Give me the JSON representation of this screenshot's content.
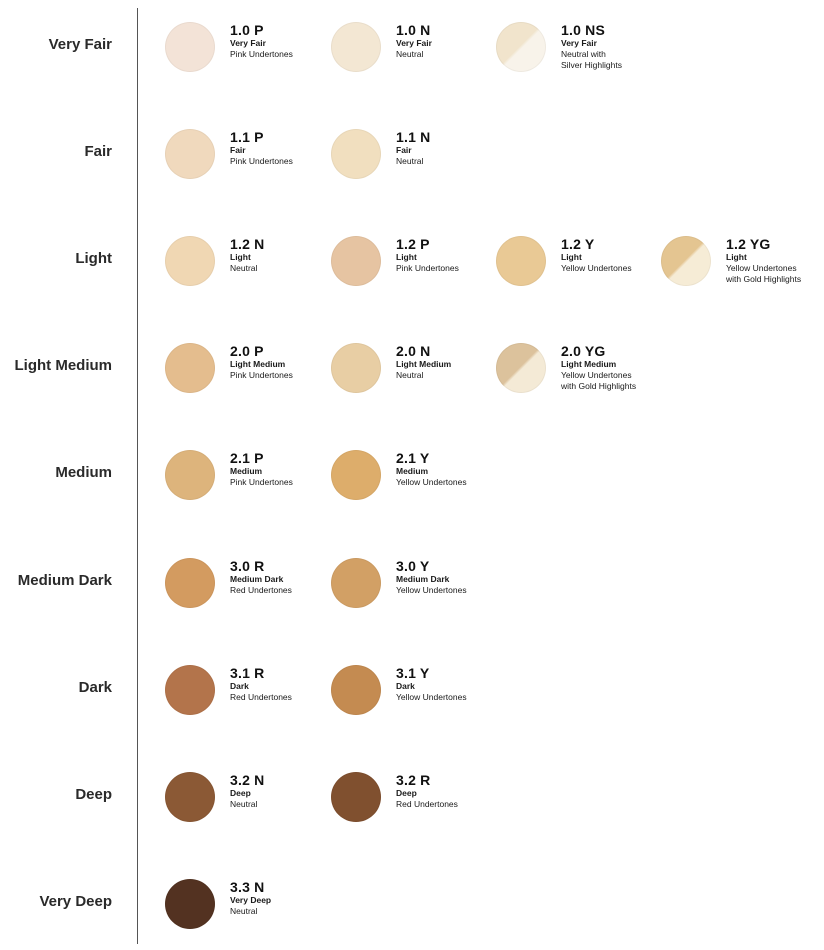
{
  "rows": [
    {
      "label": "Very Fair",
      "shades": [
        {
          "code": "1.0 P",
          "depth": "Very Fair",
          "tone": [
            "Pink Undertones"
          ],
          "color": "#f3e3d7"
        },
        {
          "code": "1.0 N",
          "depth": "Very Fair",
          "tone": [
            "Neutral"
          ],
          "color": "#f3e7d3"
        },
        {
          "code": "1.0 NS",
          "depth": "Very Fair",
          "tone": [
            "Neutral with",
            "Silver Highlights"
          ],
          "color": "#f1e4cc",
          "color2": "#f8f3ea"
        }
      ]
    },
    {
      "label": "Fair",
      "shades": [
        {
          "code": "1.1 P",
          "depth": "Fair",
          "tone": [
            "Pink Undertones"
          ],
          "color": "#f0d9bd"
        },
        {
          "code": "1.1 N",
          "depth": "Fair",
          "tone": [
            "Neutral"
          ],
          "color": "#f1dfbf"
        }
      ]
    },
    {
      "label": "Light",
      "shades": [
        {
          "code": "1.2 N",
          "depth": "Light",
          "tone": [
            "Neutral"
          ],
          "color": "#f0d7b3"
        },
        {
          "code": "1.2 P",
          "depth": "Light",
          "tone": [
            "Pink Undertones"
          ],
          "color": "#e6c4a2"
        },
        {
          "code": "1.2 Y",
          "depth": "Light",
          "tone": [
            "Yellow Undertones"
          ],
          "color": "#e9c995"
        },
        {
          "code": "1.2 YG",
          "depth": "Light",
          "tone": [
            "Yellow Undertones",
            "with Gold Highlights"
          ],
          "color": "#e4c591",
          "color2": "#f6ecd6"
        }
      ]
    },
    {
      "label": "Light Medium",
      "shades": [
        {
          "code": "2.0 P",
          "depth": "Light Medium",
          "tone": [
            "Pink Undertones"
          ],
          "color": "#e4bd8e"
        },
        {
          "code": "2.0 N",
          "depth": "Light Medium",
          "tone": [
            "Neutral"
          ],
          "color": "#e8cea4"
        },
        {
          "code": "2.0 YG",
          "depth": "Light Medium",
          "tone": [
            "Yellow Undertones",
            "with Gold Highlights"
          ],
          "color": "#dcc29c",
          "color2": "#f4ead6"
        }
      ]
    },
    {
      "label": "Medium",
      "shades": [
        {
          "code": "2.1 P",
          "depth": "Medium",
          "tone": [
            "Pink Undertones"
          ],
          "color": "#ddb47c"
        },
        {
          "code": "2.1 Y",
          "depth": "Medium",
          "tone": [
            "Yellow Undertones"
          ],
          "color": "#ddad6b"
        }
      ]
    },
    {
      "label": "Medium Dark",
      "shades": [
        {
          "code": "3.0 R",
          "depth": "Medium Dark",
          "tone": [
            "Red Undertones"
          ],
          "color": "#d39b60"
        },
        {
          "code": "3.0 Y",
          "depth": "Medium Dark",
          "tone": [
            "Yellow Undertones"
          ],
          "color": "#d2a065"
        }
      ]
    },
    {
      "label": "Dark",
      "shades": [
        {
          "code": "3.1 R",
          "depth": "Dark",
          "tone": [
            "Red Undertones"
          ],
          "color": "#b3744b"
        },
        {
          "code": "3.1 Y",
          "depth": "Dark",
          "tone": [
            "Yellow Undertones"
          ],
          "color": "#c48b51"
        }
      ]
    },
    {
      "label": "Deep",
      "shades": [
        {
          "code": "3.2 N",
          "depth": "Deep",
          "tone": [
            "Neutral"
          ],
          "color": "#8b5935"
        },
        {
          "code": "3.2 R",
          "depth": "Deep",
          "tone": [
            "Red Undertones"
          ],
          "color": "#80502f"
        }
      ]
    },
    {
      "label": "Very Deep",
      "shades": [
        {
          "code": "3.3 N",
          "depth": "Very Deep",
          "tone": [
            "Neutral"
          ],
          "color": "#533221"
        }
      ]
    }
  ]
}
